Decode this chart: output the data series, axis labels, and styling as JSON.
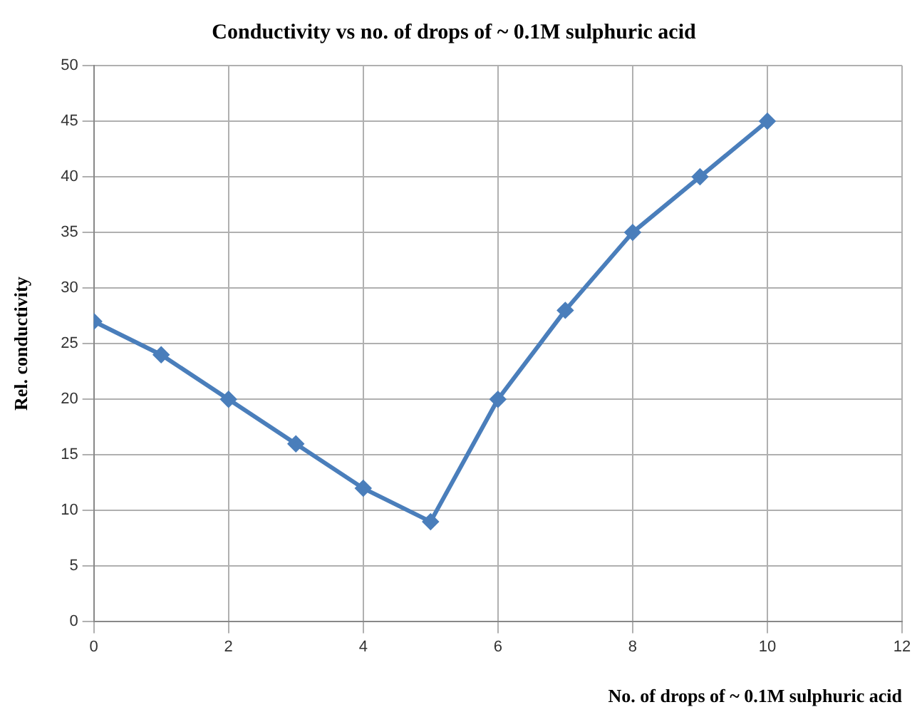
{
  "chart_data": {
    "type": "line",
    "title": "Conductivity vs no. of drops of ~ 0.1M sulphuric acid",
    "xlabel": "No. of drops of ~ 0.1M sulphuric acid",
    "ylabel": "Rel. conductivity",
    "x": [
      0,
      1,
      2,
      3,
      4,
      5,
      6,
      7,
      8,
      9,
      10
    ],
    "series": [
      {
        "color": "#4a7ebb",
        "values": [
          27,
          24,
          20,
          16,
          12,
          9,
          20,
          28,
          35,
          40,
          45
        ]
      }
    ],
    "xlim": [
      0,
      12
    ],
    "xticks": [
      0,
      2,
      4,
      6,
      8,
      10,
      12
    ],
    "ylim": [
      0,
      50
    ],
    "yticks": [
      0,
      5,
      10,
      15,
      20,
      25,
      30,
      35,
      40,
      45,
      50
    ],
    "grid": true,
    "legend": false,
    "marker": "diamond",
    "line_style": "solid"
  }
}
